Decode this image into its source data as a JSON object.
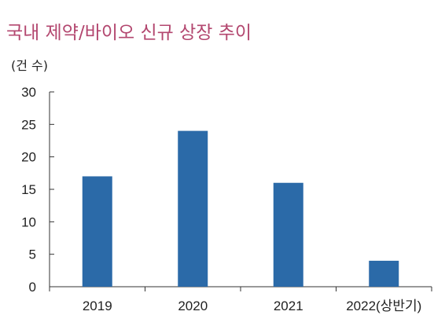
{
  "title": "국내 제약/바이오 신규 상장 추이",
  "unit": "(건 수)",
  "colors": {
    "title": "#b3476f",
    "bar": "#2b6aa8",
    "axis": "#333333"
  },
  "chart_data": {
    "type": "bar",
    "categories": [
      "2019",
      "2020",
      "2021",
      "2022(상반기)"
    ],
    "values": [
      17,
      24,
      16,
      4
    ],
    "title": "국내 제약/바이오 신규 상장 추이",
    "ylabel": "(건 수)",
    "xlabel": "",
    "ylim": [
      0,
      30
    ],
    "yticks": [
      0,
      5,
      10,
      15,
      20,
      25,
      30
    ],
    "grid": false,
    "legend": "none"
  }
}
